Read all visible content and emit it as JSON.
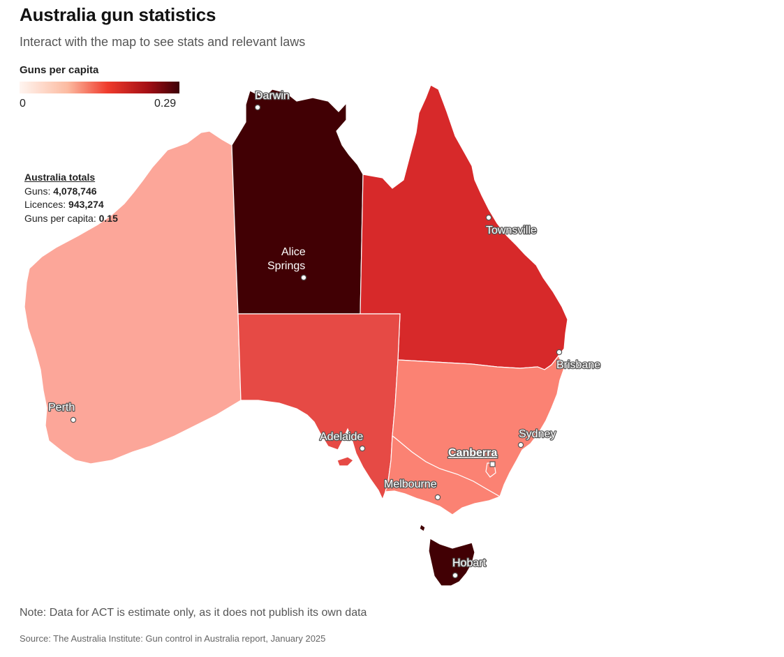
{
  "header": {
    "title": "Australia gun statistics",
    "subtitle": "Interact with the map to see stats and relevant laws"
  },
  "legend": {
    "title": "Guns per capita",
    "min_label": "0",
    "max_label": "0.29",
    "min_value": 0,
    "max_value": 0.29,
    "color_stops": [
      "#fff5f0",
      "#fcbba1",
      "#ef3b2c",
      "#a50f15",
      "#3d0007"
    ]
  },
  "totals": {
    "heading": "Australia totals",
    "guns_label": "Guns: ",
    "guns_value": "4,078,746",
    "licences_label": "Licences: ",
    "licences_value": "943,274",
    "per_capita_label": "Guns per capita: ",
    "per_capita_value": "0.15"
  },
  "regions": {
    "wa": {
      "fill": "#fca699"
    },
    "nt": {
      "fill": "#410004"
    },
    "qld": {
      "fill": "#d7292a"
    },
    "sa": {
      "fill": "#e64a45"
    },
    "nsw": {
      "fill": "#fb8273"
    },
    "vic": {
      "fill": "#fb8273"
    },
    "act": {
      "fill": "#fb8273"
    },
    "tas": {
      "fill": "#410004"
    }
  },
  "cities": {
    "darwin": "Darwin",
    "alice_line1": "Alice",
    "alice_line2": "Springs",
    "townsville": "Townsville",
    "brisbane": "Brisbane",
    "perth": "Perth",
    "adelaide": "Adelaide",
    "sydney": "Sydney",
    "canberra": "Canberra",
    "melbourne": "Melbourne",
    "hobart": "Hobart"
  },
  "footer": {
    "note": "Note: Data for ACT is estimate only, as it does not publish its own data",
    "source": "Source: The Australia Institute: Gun control in Australia report, January 2025"
  }
}
